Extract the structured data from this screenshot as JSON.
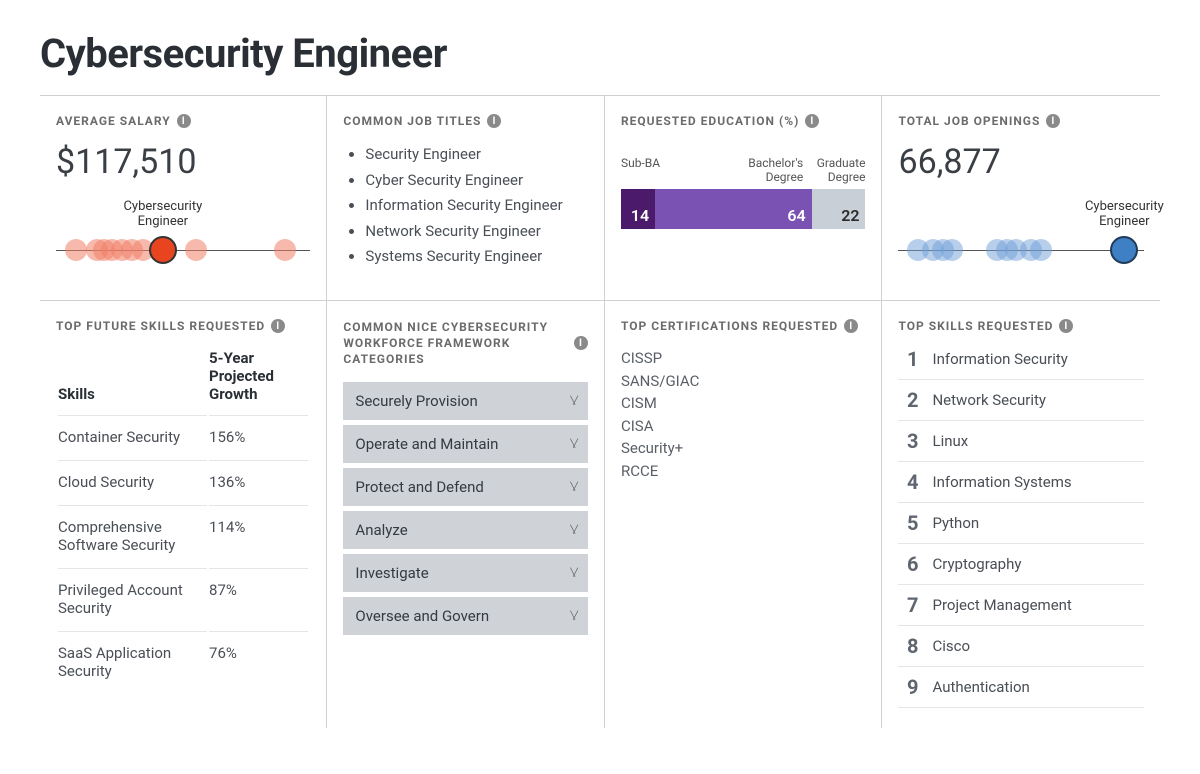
{
  "title": "Cybersecurity Engineer",
  "salary": {
    "header": "AVERAGE SALARY",
    "value": "$117,510",
    "highlight_label": "Cybersecurity\nEngineer",
    "chart": {
      "axis_color": "#555555",
      "dot_color": "#f08068",
      "dot_opacity": 0.55,
      "highlight_color": "#e8441f",
      "highlight_border": "#333333",
      "positions_pct": [
        8,
        16,
        19,
        22,
        26,
        30,
        34,
        55,
        90
      ],
      "highlight_pct": 42
    }
  },
  "job_titles": {
    "header": "COMMON JOB TITLES",
    "items": [
      "Security Engineer",
      "Cyber Security Engineer",
      "Information Security Engineer",
      "Network Security Engineer",
      "Systems Security Engineer"
    ]
  },
  "education": {
    "header": "REQUESTED EDUCATION (%)",
    "labels": [
      "Sub-BA",
      "Bachelor's\nDegree",
      "Graduate\nDegree"
    ],
    "values": [
      14,
      64,
      22
    ],
    "colors": [
      "#4b1a6b",
      "#7a52b3",
      "#c9cfd6"
    ]
  },
  "openings": {
    "header": "TOTAL JOB OPENINGS",
    "value": "66,877",
    "highlight_label": "Cybersecurity\nEngineer",
    "chart": {
      "axis_color": "#555555",
      "dot_color": "#6fa0d8",
      "dot_opacity": 0.5,
      "highlight_color": "#3f7fc4",
      "highlight_border": "#1f3b57",
      "positions_pct": [
        8,
        14,
        18,
        22,
        40,
        44,
        48,
        54,
        58
      ],
      "highlight_pct": 92
    }
  },
  "future_skills": {
    "header": "TOP FUTURE SKILLS REQUESTED",
    "columns": [
      "Skills",
      "5-Year Projected Growth"
    ],
    "rows": [
      [
        "Container Security",
        "156%"
      ],
      [
        "Cloud Security",
        "136%"
      ],
      [
        "Comprehensive Software Security",
        "114%"
      ],
      [
        "Privileged Account Security",
        "87%"
      ],
      [
        "SaaS Application Security",
        "76%"
      ]
    ]
  },
  "nice": {
    "header": "COMMON NICE CYBERSECURITY WORKFORCE FRAMEWORK CATEGORIES",
    "items": [
      "Securely Provision",
      "Operate and Maintain",
      "Protect and Defend",
      "Analyze",
      "Investigate",
      "Oversee and Govern"
    ],
    "item_bg": "#cfd3d7"
  },
  "certs": {
    "header": "TOP CERTIFICATIONS REQUESTED",
    "items": [
      "CISSP",
      "SANS/GIAC",
      "CISM",
      "CISA",
      "Security+",
      "RCCE"
    ]
  },
  "top_skills": {
    "header": "TOP SKILLS REQUESTED",
    "items": [
      "Information Security",
      "Network Security",
      "Linux",
      "Information Systems",
      "Python",
      "Cryptography",
      "Project Management",
      "Cisco",
      "Authentication"
    ]
  }
}
